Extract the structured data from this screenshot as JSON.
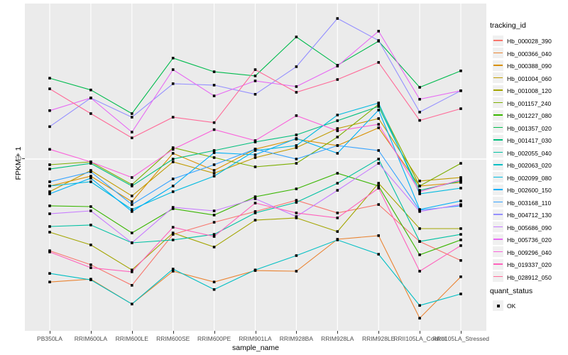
{
  "figure": {
    "panel_bg": "#EBEBEB",
    "grid_color": "#FFFFFF",
    "point_color": "#000000",
    "tick_color": "#333333",
    "tick_label_color": "#4D4D4D"
  },
  "legend": {
    "tracking_title": "tracking_id",
    "quant_title": "quant_status",
    "quant_value": "OK"
  },
  "chart_data": {
    "type": "line",
    "title": "",
    "xlabel": "sample_name",
    "ylabel": "FPKM + 1",
    "y_scale": "log10",
    "y_ticks": [
      10
    ],
    "y_tick_label": "10",
    "ylim": [
      1.4,
      60
    ],
    "grid": "major-white-on-gray",
    "legend_position": "right",
    "point_shape": "filled-square",
    "categories": [
      "PB350LA",
      "RRIM600LA",
      "RRIM600LE",
      "RRIM600SE",
      "RRIM600PE",
      "RRIM901LA",
      "RRIM928BA",
      "RRIM928LA",
      "RRIM928LE",
      "RRII105LA_Control",
      "RRII105LA_Stressed"
    ],
    "series": [
      {
        "name": "Hb_000028_390",
        "color": "#F8766D",
        "values": [
          3.43,
          2.91,
          2.29,
          4.15,
          4.78,
          5.42,
          6.18,
          5.33,
          5.88,
          3.82,
          3.06
        ]
      },
      {
        "name": "Hb_000366_040",
        "color": "#EA8331",
        "values": [
          2.38,
          2.46,
          1.84,
          2.7,
          2.38,
          2.72,
          2.7,
          3.92,
          4.09,
          1.56,
          2.53
        ]
      },
      {
        "name": "Hb_000388_090",
        "color": "#D89000",
        "values": [
          7.3,
          8.19,
          6.08,
          10.69,
          8.76,
          11.23,
          12.61,
          11.71,
          14.4,
          7.3,
          7.61
        ]
      },
      {
        "name": "Hb_001004_060",
        "color": "#C09B00",
        "values": [
          6.83,
          8.76,
          6.5,
          9.67,
          8.47,
          10.17,
          11.42,
          14.28,
          16.04,
          7.74,
          8.06
        ]
      },
      {
        "name": "Hb_001008_120",
        "color": "#A3A500",
        "values": [
          4.26,
          3.67,
          2.74,
          4.22,
          3.58,
          4.9,
          5.03,
          4.29,
          7.54,
          4.44,
          4.44
        ]
      },
      {
        "name": "Hb_001157_240",
        "color": "#7CAE00",
        "values": [
          9.36,
          9.67,
          7.42,
          11.42,
          10.17,
          9.13,
          9.51,
          12.93,
          18.93,
          7.3,
          9.51
        ]
      },
      {
        "name": "Hb_001227_080",
        "color": "#39B600",
        "values": [
          5.79,
          5.74,
          4.22,
          5.6,
          5.2,
          6.44,
          7.06,
          8.47,
          7.3,
          3.27,
          3.89
        ]
      },
      {
        "name": "Hb_001357_020",
        "color": "#00BB4E",
        "values": [
          25.7,
          22.4,
          17.0,
          32.5,
          27.7,
          26.4,
          41.6,
          29.9,
          39.6,
          23.1,
          28.0
        ]
      },
      {
        "name": "Hb_001417_030",
        "color": "#00BF7D",
        "values": [
          8.9,
          9.51,
          7.3,
          10.0,
          11.05,
          12.2,
          13.26,
          15.65,
          18.47,
          6.94,
          7.74
        ]
      },
      {
        "name": "Hb_002055_040",
        "color": "#00C1A3",
        "values": [
          4.55,
          4.63,
          3.76,
          3.89,
          4.15,
          5.33,
          6.03,
          7.54,
          10.0,
          3.82,
          4.15
        ]
      },
      {
        "name": "Hb_002063_020",
        "color": "#00BFC4",
        "values": [
          2.63,
          2.44,
          1.84,
          2.77,
          2.18,
          2.74,
          3.24,
          3.89,
          3.29,
          1.81,
          2.07
        ]
      },
      {
        "name": "Hb_002099_080",
        "color": "#00BAE0",
        "values": [
          7.3,
          7.67,
          5.55,
          6.83,
          8.19,
          11.05,
          11.71,
          16.72,
          19.25,
          6.66,
          7.12
        ]
      },
      {
        "name": "Hb_002600_150",
        "color": "#00B0F6",
        "values": [
          6.66,
          8.0,
          5.42,
          7.3,
          10.77,
          10.51,
          12.72,
          10.69,
          17.72,
          5.55,
          6.13
        ]
      },
      {
        "name": "Hb_003168_110",
        "color": "#35A2FF",
        "values": [
          7.67,
          8.61,
          5.88,
          7.93,
          9.36,
          11.23,
          10.0,
          11.71,
          11.05,
          5.51,
          5.79
        ]
      },
      {
        "name": "Hb_004712_130",
        "color": "#9590FF",
        "values": [
          14.6,
          20.4,
          16.3,
          24.1,
          23.7,
          21.3,
          29.4,
          51.6,
          39.9,
          17.3,
          22.2
        ]
      },
      {
        "name": "Hb_005686_090",
        "color": "#C77CFF",
        "values": [
          5.28,
          5.46,
          3.76,
          5.69,
          5.46,
          6.29,
          5.11,
          6.94,
          9.51,
          5.42,
          5.88
        ]
      },
      {
        "name": "Hb_005736_020",
        "color": "#E76BF3",
        "values": [
          17.6,
          20.4,
          13.7,
          28.4,
          20.9,
          24.9,
          23.3,
          29.6,
          44.5,
          20.1,
          22.2
        ]
      },
      {
        "name": "Hb_009296_040",
        "color": "#FA62DB",
        "values": [
          11.2,
          9.67,
          8.06,
          11.2,
          14.1,
          12.4,
          16.6,
          13.9,
          15.0,
          6.83,
          7.86
        ]
      },
      {
        "name": "Hb_019337_020",
        "color": "#FF62BC",
        "values": [
          3.38,
          2.81,
          2.68,
          4.51,
          4.05,
          5.98,
          5.33,
          5.03,
          7.12,
          2.7,
          3.64
        ]
      },
      {
        "name": "Hb_028912_050",
        "color": "#FF6A98",
        "values": [
          22.7,
          17.0,
          12.8,
          16.3,
          15.3,
          28.4,
          21.8,
          25.3,
          30.9,
          15.7,
          18.0
        ]
      }
    ]
  }
}
